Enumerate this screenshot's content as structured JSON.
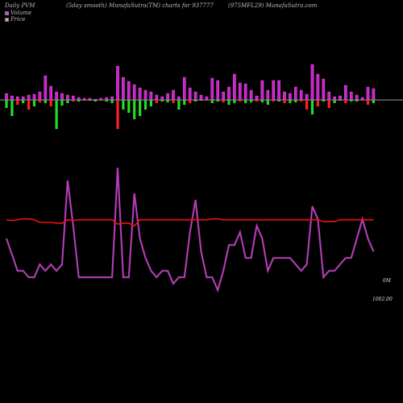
{
  "header": {
    "left": "Daily PVM",
    "center": "(5day smooth) MunafaSutra(TM) charts for 937777",
    "right": "(975MFL29) MunafaSutra.com"
  },
  "legend": {
    "volume_label": "Volume",
    "volume_color": "#e040e0",
    "price_label": "Price",
    "price_color": "#f0a080"
  },
  "axis": {
    "volume_tick": "0M",
    "price_tick": "1002.00"
  },
  "colors": {
    "volume_bar": "#cc22cc",
    "up_bar": "#22dd22",
    "down_bar": "#ff2222",
    "volume_line": "#cc33cc",
    "price_line": "#ee1111",
    "baseline": "#cccccc"
  },
  "chart_data": {
    "type": "bar+line",
    "count": 67,
    "volume_bars": [
      8,
      5,
      4,
      4,
      6,
      7,
      10,
      30,
      17,
      10,
      8,
      6,
      5,
      3,
      2,
      2,
      1,
      2,
      3,
      4,
      42,
      28,
      23,
      19,
      15,
      12,
      10,
      6,
      4,
      8,
      12,
      4,
      28,
      15,
      10,
      6,
      4,
      27,
      24,
      10,
      16,
      32,
      21,
      20,
      12,
      5,
      24,
      12,
      24,
      24,
      10,
      8,
      16,
      12,
      7,
      44,
      32,
      26,
      10,
      4,
      5,
      18,
      10,
      6,
      3,
      16,
      14
    ],
    "price_bars": [
      -10,
      -20,
      -6,
      -4,
      -12,
      -8,
      -3,
      -4,
      -8,
      -36,
      -7,
      -4,
      -2,
      -2,
      -1,
      -1,
      -2,
      -1,
      -2,
      -4,
      -36,
      -12,
      -16,
      -24,
      -20,
      -12,
      -8,
      -4,
      -2,
      -3,
      -4,
      -12,
      -6,
      -4,
      -2,
      -1,
      -1,
      -4,
      -2,
      -3,
      -6,
      -4,
      -2,
      -4,
      -3,
      -2,
      -3,
      -6,
      -2,
      -2,
      -4,
      -4,
      -3,
      -2,
      -12,
      -18,
      -8,
      -2,
      -10,
      -4,
      -1,
      -4,
      -2,
      -2,
      -1,
      -6,
      -4
    ],
    "price_bar_colors": [
      "g",
      "g",
      "r",
      "g",
      "r",
      "g",
      "r",
      "g",
      "r",
      "g",
      "g",
      "g",
      "r",
      "g",
      "r",
      "g",
      "g",
      "r",
      "g",
      "g",
      "r",
      "g",
      "g",
      "g",
      "g",
      "g",
      "g",
      "r",
      "g",
      "g",
      "r",
      "g",
      "g",
      "r",
      "g",
      "g",
      "r",
      "g",
      "g",
      "r",
      "g",
      "g",
      "r",
      "g",
      "g",
      "r",
      "g",
      "g",
      "r",
      "g",
      "r",
      "g",
      "g",
      "r",
      "r",
      "g",
      "r",
      "g",
      "r",
      "g",
      "g",
      "r",
      "g",
      "g",
      "r",
      "r",
      "g"
    ],
    "volume_line": [
      20,
      15,
      10,
      10,
      8,
      8,
      12,
      10,
      12,
      10,
      12,
      38,
      24,
      8,
      8,
      8,
      8,
      8,
      8,
      8,
      42,
      8,
      8,
      34,
      20,
      14,
      10,
      8,
      10,
      10,
      6,
      8,
      8,
      22,
      32,
      16,
      8,
      8,
      4,
      10,
      18,
      18,
      22,
      14,
      14,
      24,
      20,
      10,
      14,
      14,
      14,
      14,
      12,
      10,
      12,
      30,
      26,
      8,
      10,
      10,
      12,
      14,
      14,
      20,
      26,
      20,
      16
    ],
    "price_line": [
      0.42,
      0.41,
      0.42,
      0.43,
      0.43,
      0.42,
      0.39,
      0.39,
      0.39,
      0.38,
      0.38,
      0.42,
      0.41,
      0.42,
      0.42,
      0.42,
      0.42,
      0.42,
      0.42,
      0.42,
      0.37,
      0.38,
      0.38,
      0.35,
      0.42,
      0.42,
      0.42,
      0.42,
      0.42,
      0.42,
      0.42,
      0.42,
      0.42,
      0.42,
      0.42,
      0.42,
      0.42,
      0.43,
      0.43,
      0.42,
      0.42,
      0.42,
      0.42,
      0.42,
      0.42,
      0.42,
      0.42,
      0.42,
      0.42,
      0.42,
      0.42,
      0.42,
      0.42,
      0.42,
      0.42,
      0.42,
      0.42,
      0.4,
      0.4,
      0.4,
      0.42,
      0.42,
      0.42,
      0.42,
      0.42,
      0.42,
      0.42
    ]
  }
}
